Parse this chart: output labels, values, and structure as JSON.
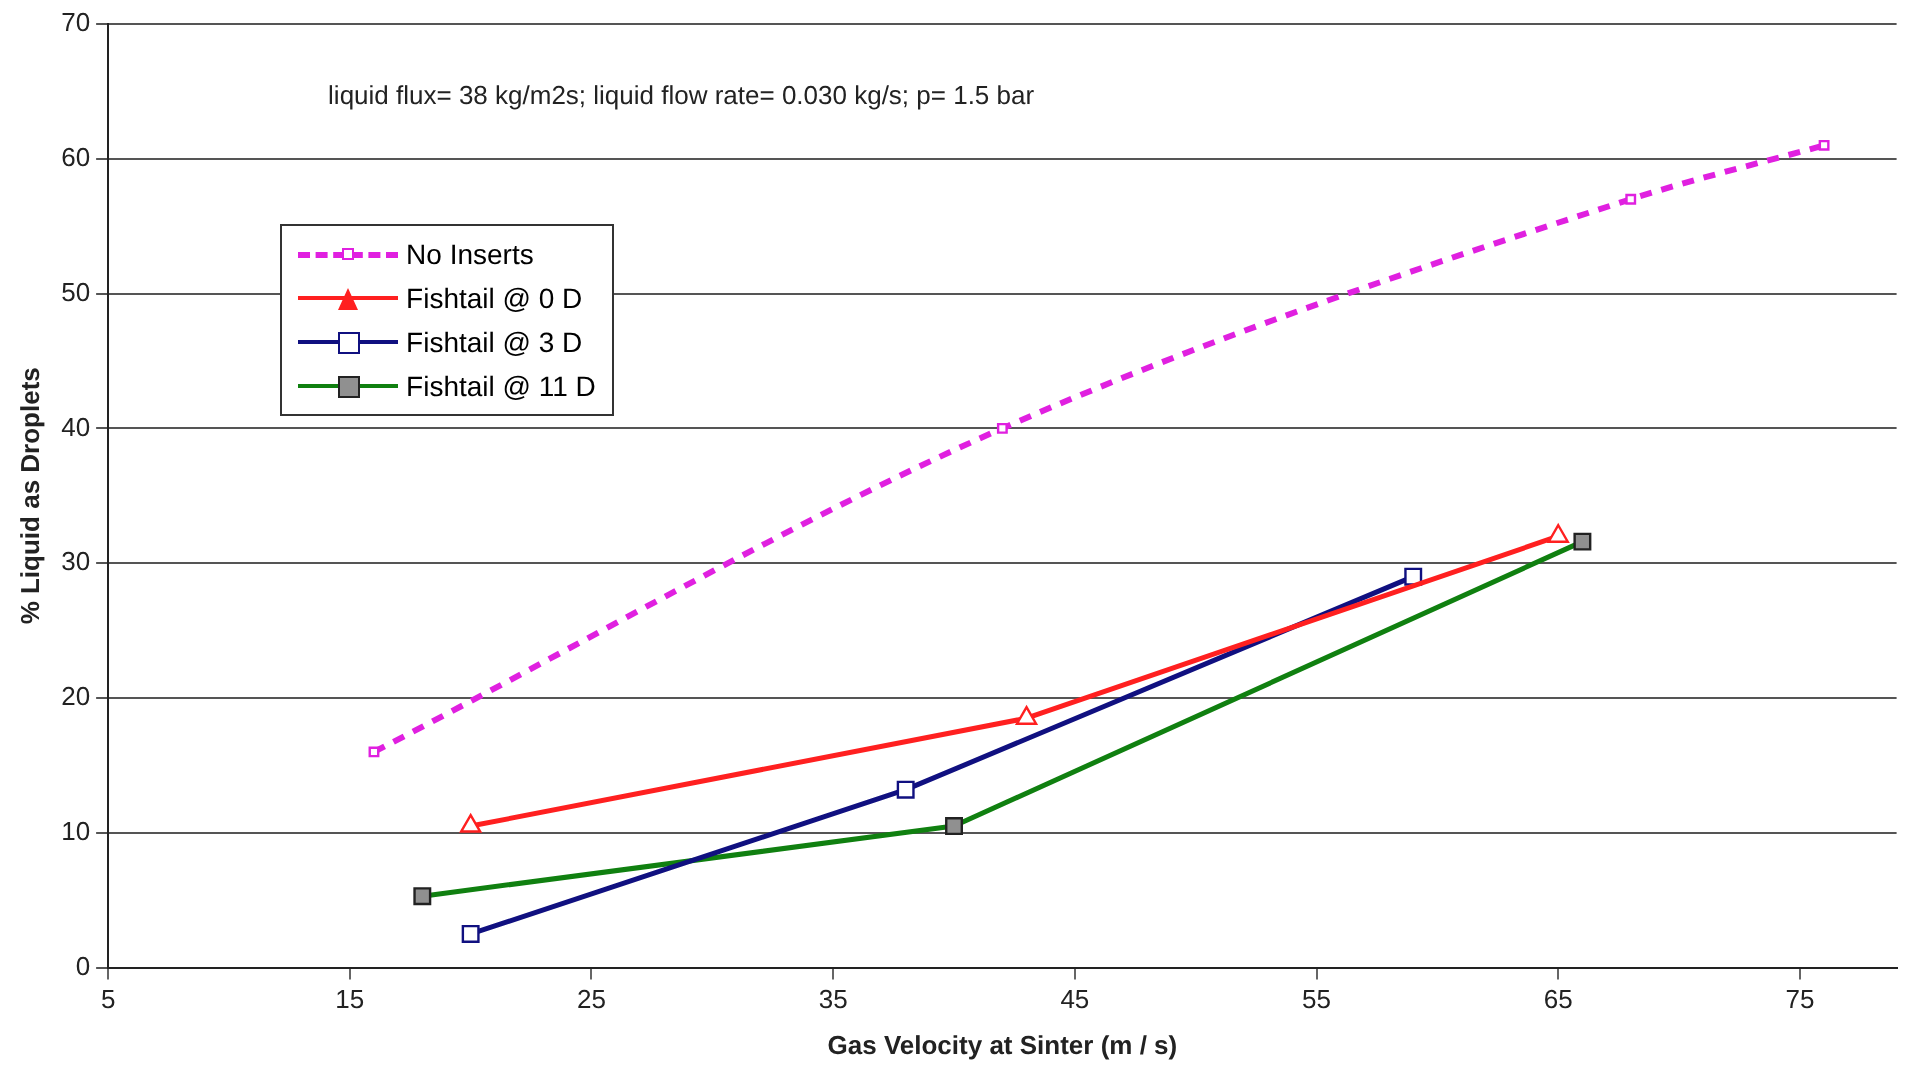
{
  "chart_data": {
    "type": "line",
    "xlabel": "Gas Velocity at Sinter (m / s)",
    "ylabel": "% Liquid as Droplets",
    "annotations": [
      "liquid flux= 38 kg/m2s; liquid flow rate= 0.030 kg/s; p= 1.5 bar"
    ],
    "xlim": [
      5,
      79
    ],
    "xticks": [
      5,
      15,
      25,
      35,
      45,
      55,
      65,
      75
    ],
    "ylim": [
      0,
      70
    ],
    "yticks": [
      0,
      10,
      20,
      30,
      40,
      50,
      60,
      70
    ],
    "grid": "y",
    "legend": "top left",
    "series": [
      {
        "name": "No Inserts",
        "color": "#e020e0",
        "line_style": "dashed",
        "marker": "square",
        "x": [
          16,
          42,
          68,
          76
        ],
        "values": [
          16,
          40,
          57,
          61
        ]
      },
      {
        "name": "Fishtail @ 0 D",
        "color": "#ff2020",
        "line_style": "solid",
        "marker": "triangle",
        "x": [
          20,
          43,
          65
        ],
        "values": [
          10.5,
          18.5,
          32
        ]
      },
      {
        "name": "Fishtail @ 3 D",
        "color": "#101080",
        "line_style": "solid",
        "marker": "square",
        "x": [
          20,
          38,
          59
        ],
        "values": [
          2.5,
          13.2,
          29
        ]
      },
      {
        "name": "Fishtail @ 11 D",
        "color": "#108010",
        "line_style": "solid",
        "marker": "square",
        "x": [
          18,
          40,
          66
        ],
        "values": [
          5.3,
          10.5,
          31.6
        ]
      }
    ]
  }
}
